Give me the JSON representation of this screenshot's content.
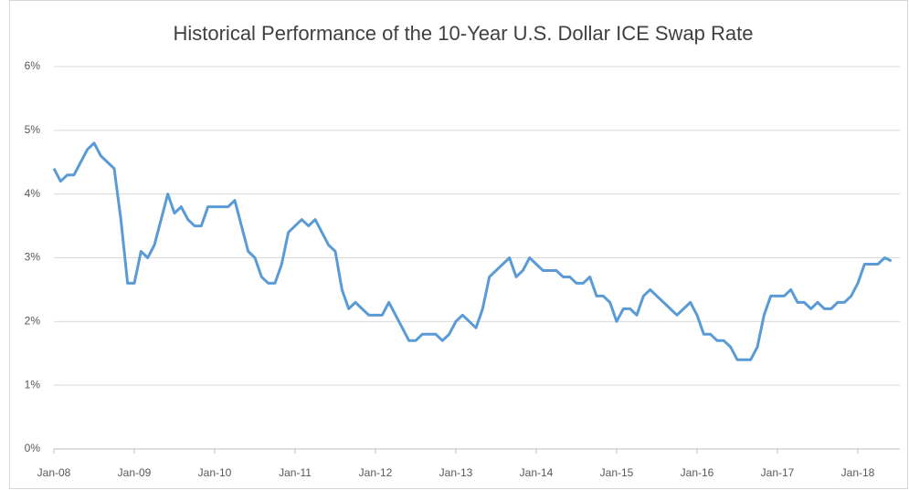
{
  "chart_data": {
    "type": "line",
    "title": "Historical Performance of the 10-Year U.S. Dollar ICE Swap Rate",
    "categories": [
      "Jan-08",
      null,
      null,
      null,
      null,
      null,
      null,
      null,
      null,
      null,
      null,
      null,
      "Jan-09",
      null,
      null,
      null,
      null,
      null,
      null,
      null,
      null,
      null,
      null,
      null,
      "Jan-10",
      null,
      null,
      null,
      null,
      null,
      null,
      null,
      null,
      null,
      null,
      null,
      "Jan-11",
      null,
      null,
      null,
      null,
      null,
      null,
      null,
      null,
      null,
      null,
      null,
      "Jan-12",
      null,
      null,
      null,
      null,
      null,
      null,
      null,
      null,
      null,
      null,
      null,
      "Jan-13",
      null,
      null,
      null,
      null,
      null,
      null,
      null,
      null,
      null,
      null,
      null,
      "Jan-14",
      null,
      null,
      null,
      null,
      null,
      null,
      null,
      null,
      null,
      null,
      null,
      "Jan-15",
      null,
      null,
      null,
      null,
      null,
      null,
      null,
      null,
      null,
      null,
      null,
      "Jan-16",
      null,
      null,
      null,
      null,
      null,
      null,
      null,
      null,
      null,
      null,
      null,
      "Jan-17",
      null,
      null,
      null,
      null,
      null,
      null,
      null,
      null,
      null,
      null,
      null,
      "Jan-18",
      null,
      null,
      null,
      null,
      null
    ],
    "values": [
      4.4,
      4.2,
      4.3,
      4.3,
      4.5,
      4.7,
      4.8,
      4.6,
      4.5,
      4.4,
      3.6,
      2.6,
      2.6,
      3.1,
      3.0,
      3.2,
      3.6,
      4.0,
      3.7,
      3.8,
      3.6,
      3.5,
      3.5,
      3.8,
      3.8,
      3.8,
      3.8,
      3.9,
      3.5,
      3.1,
      3.0,
      2.7,
      2.6,
      2.6,
      2.9,
      3.4,
      3.5,
      3.6,
      3.5,
      3.6,
      3.4,
      3.2,
      3.1,
      2.5,
      2.2,
      2.3,
      2.2,
      2.1,
      2.1,
      2.1,
      2.3,
      2.1,
      1.9,
      1.7,
      1.7,
      1.8,
      1.8,
      1.8,
      1.7,
      1.8,
      2.0,
      2.1,
      2.0,
      1.9,
      2.2,
      2.7,
      2.8,
      2.9,
      3.0,
      2.7,
      2.8,
      3.0,
      2.9,
      2.8,
      2.8,
      2.8,
      2.7,
      2.7,
      2.6,
      2.6,
      2.7,
      2.4,
      2.4,
      2.3,
      2.0,
      2.2,
      2.2,
      2.1,
      2.4,
      2.5,
      2.4,
      2.3,
      2.2,
      2.1,
      2.2,
      2.3,
      2.1,
      1.8,
      1.8,
      1.7,
      1.7,
      1.6,
      1.4,
      1.4,
      1.4,
      1.6,
      2.1,
      2.4,
      2.4,
      2.4,
      2.5,
      2.3,
      2.3,
      2.2,
      2.3,
      2.2,
      2.2,
      2.3,
      2.3,
      2.4,
      2.6,
      2.9,
      2.9,
      2.9,
      3.0,
      2.95
    ],
    "color": "#5b9bd5",
    "ylim": [
      0,
      6
    ],
    "yticks": [
      {
        "value": 0,
        "label": "0%"
      },
      {
        "value": 1,
        "label": "1%"
      },
      {
        "value": 2,
        "label": "2%"
      },
      {
        "value": 3,
        "label": "3%"
      },
      {
        "value": 4,
        "label": "4%"
      },
      {
        "value": 5,
        "label": "5%"
      },
      {
        "value": 6,
        "label": "6%"
      }
    ],
    "grid": true
  }
}
